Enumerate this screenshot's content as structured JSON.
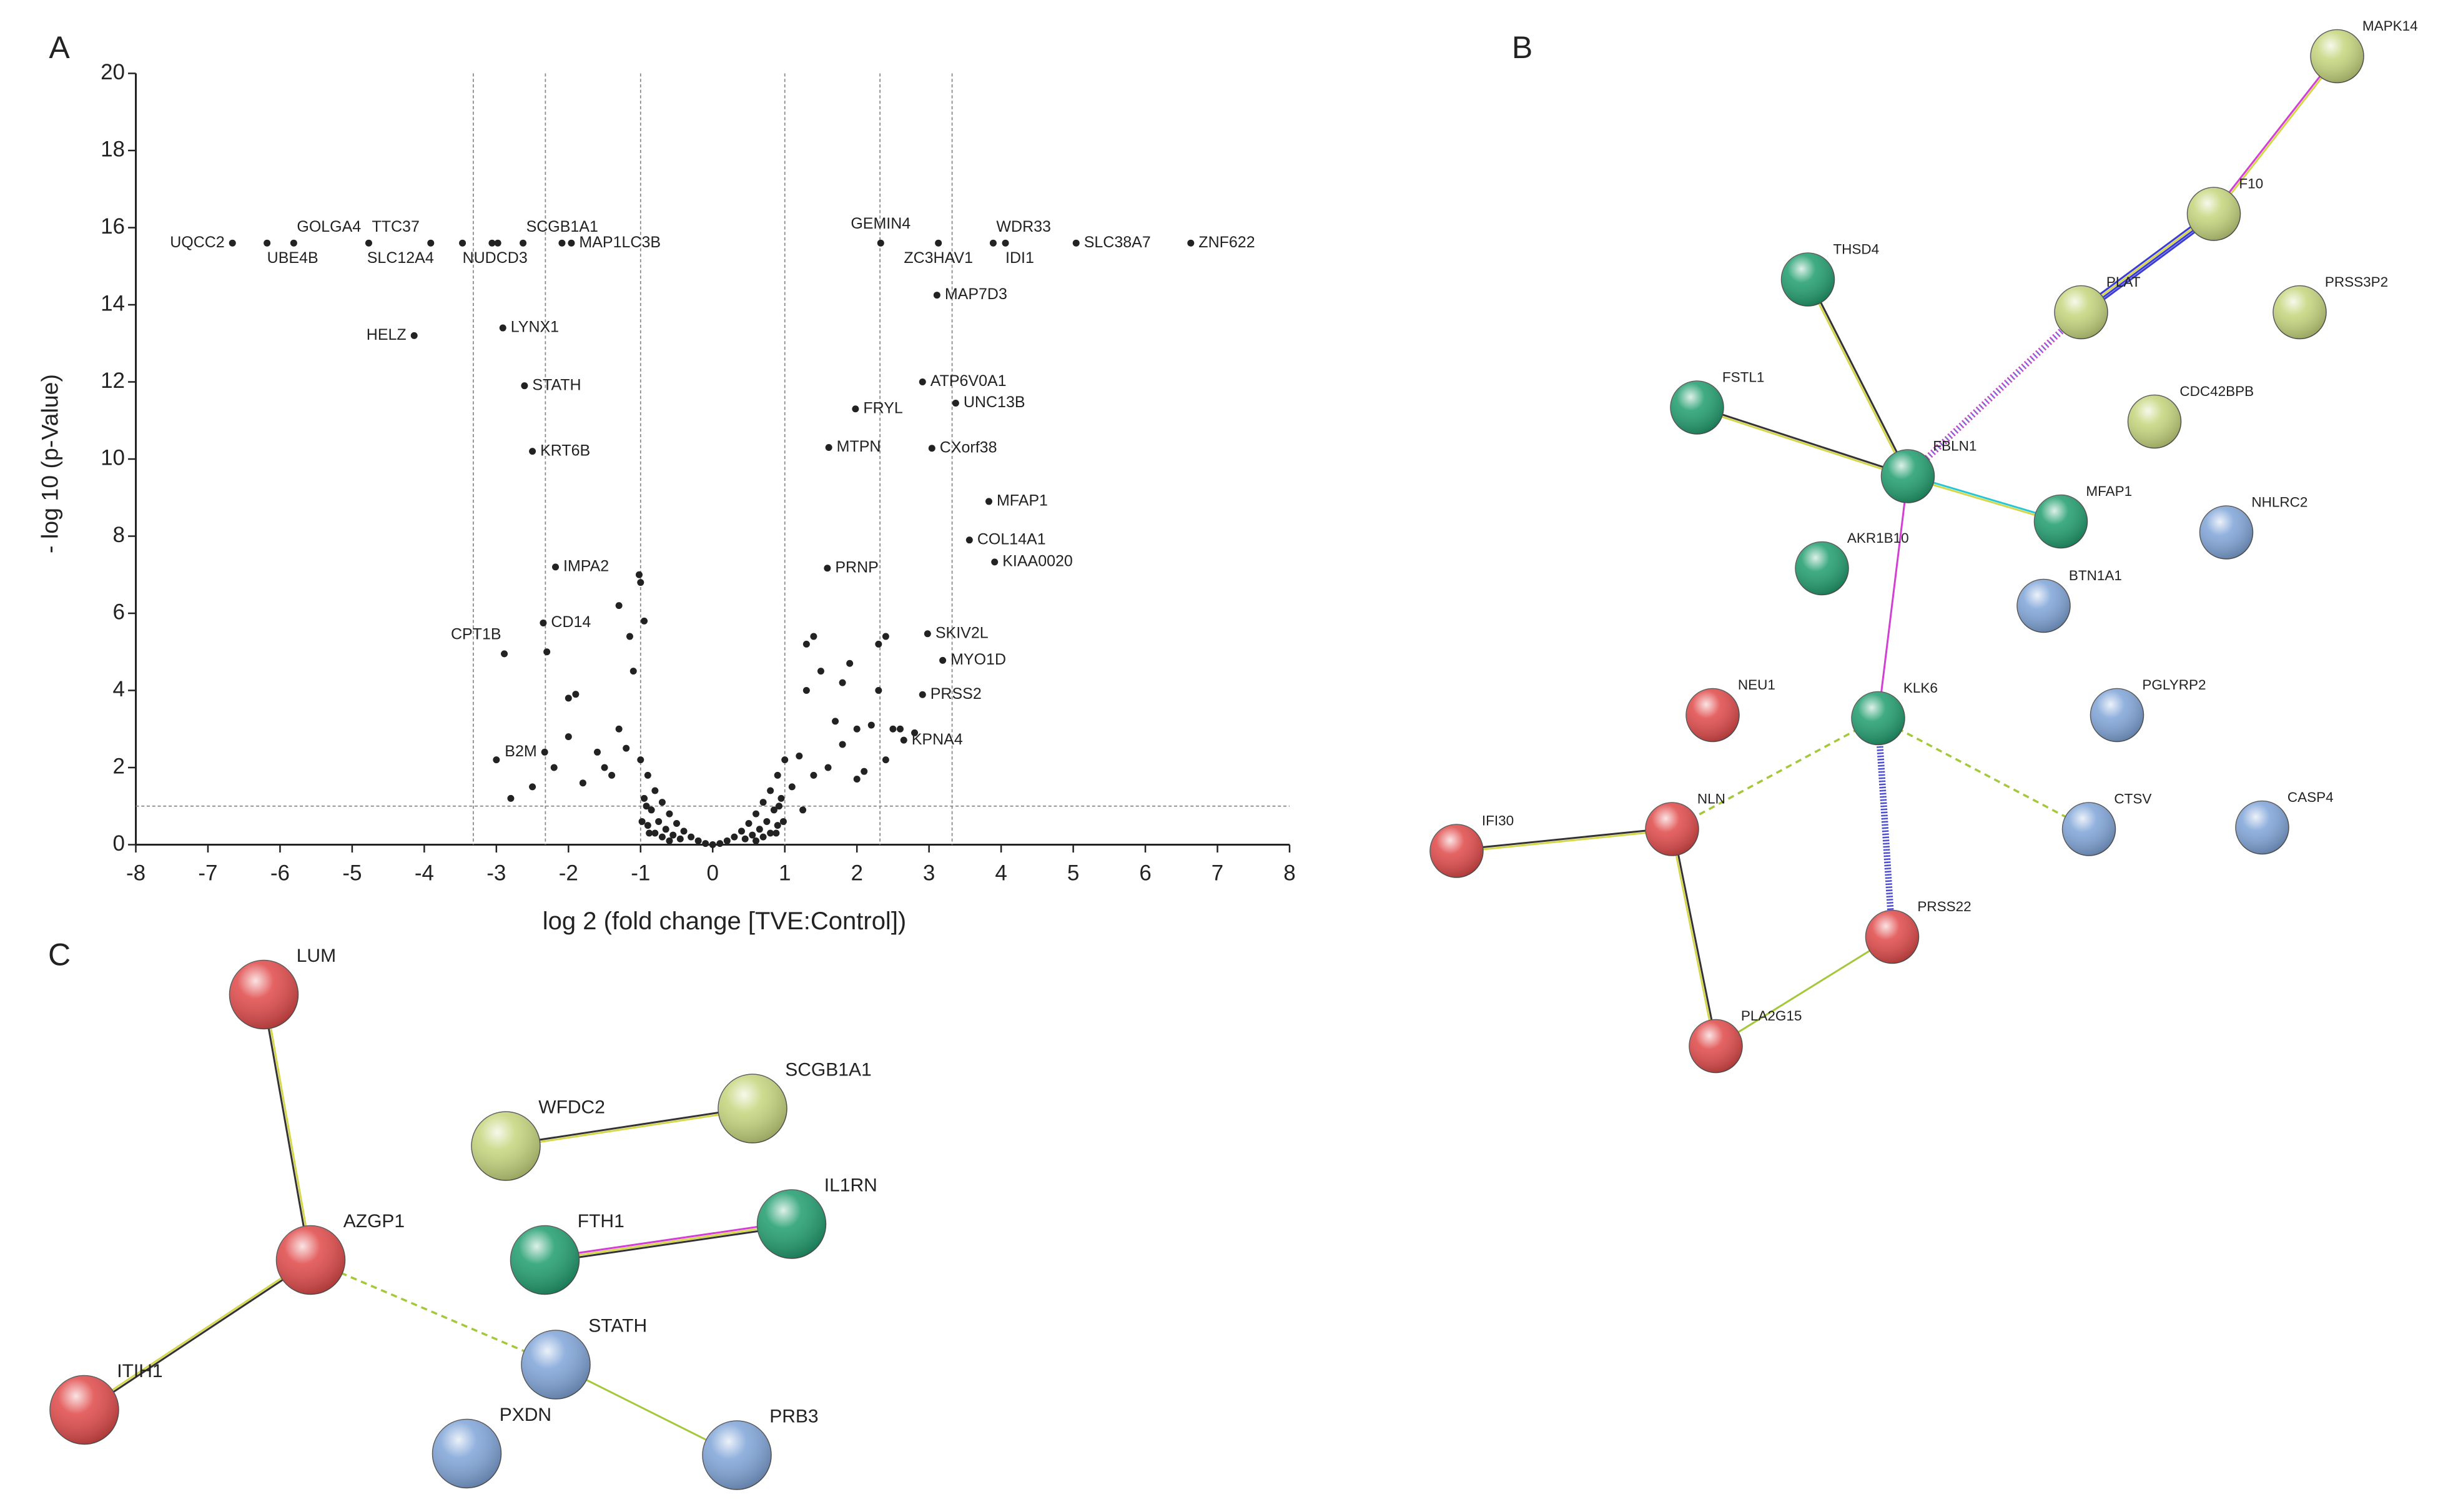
{
  "chart_data": {
    "type": "scatter",
    "panel": "A",
    "x_label": "log 2 (fold change [TVE:Control])",
    "y_label": "- log 10 (p-Value)",
    "xlim": [
      -8,
      8
    ],
    "xticks": [
      -8,
      -7,
      -6,
      -5,
      -4,
      -3,
      -2,
      -1,
      0,
      1,
      2,
      3,
      4,
      5,
      6,
      7,
      8
    ],
    "ylim": [
      0,
      20
    ],
    "yticks": [
      0,
      2,
      4,
      6,
      8,
      10,
      12,
      14,
      16,
      18,
      20
    ],
    "x_thresholds": [
      -3.32,
      -2.32,
      -1,
      1,
      2.32,
      3.32
    ],
    "y_threshold": 1,
    "color": "#222222",
    "labeled_points": {
      "labels": [
        "UQCC2",
        "GOLGA4",
        "UBE4B",
        "TTC37",
        "SLC12A4",
        "NUDCD3",
        "SCGB1A1",
        "MAP1LC3B",
        "HELZ",
        "LYNX1",
        "STATH",
        "KRT6B",
        "IMPA2",
        "CD14",
        "CPT1B",
        "B2M",
        "GEMIN4",
        "ZC3HAV1",
        "WDR33",
        "IDI1",
        "SLC38A7",
        "ZNF622",
        "MAP7D3",
        "ATP6V0A1",
        "FRYL",
        "UNC13B",
        "MTPN",
        "CXorf38",
        "MFAP1",
        "COL14A1",
        "KIAA0020",
        "PRNP",
        "SKIV2L",
        "MYO1D",
        "PRSS2",
        "KPNA4"
      ],
      "x": [
        -6.66,
        -5.81,
        -6.18,
        -4.77,
        -3.91,
        -3.47,
        -2.63,
        -1.96,
        -4.14,
        -2.91,
        -2.61,
        -2.5,
        -2.18,
        -2.35,
        -2.89,
        -2.33,
        2.33,
        3.13,
        3.89,
        4.06,
        5.04,
        6.63,
        3.11,
        2.91,
        1.98,
        3.37,
        1.61,
        3.04,
        3.83,
        3.56,
        3.91,
        1.59,
        2.98,
        3.19,
        2.91,
        2.65
      ],
      "y": [
        15.6,
        15.6,
        15.6,
        15.6,
        15.6,
        15.6,
        15.6,
        15.6,
        13.2,
        13.4,
        11.9,
        10.2,
        7.2,
        5.75,
        4.95,
        2.4,
        15.6,
        15.6,
        15.6,
        15.6,
        15.6,
        15.6,
        14.25,
        12,
        11.3,
        11.45,
        10.3,
        10.28,
        8.9,
        7.9,
        7.33,
        7.17,
        5.47,
        4.78,
        3.89,
        2.71
      ]
    },
    "other_points": {
      "x": [
        -3.06,
        -2.98,
        -2.09,
        -1.2,
        -1.5,
        -1.8,
        -2.0,
        -2.5,
        -2.8,
        -3.0,
        -1.3,
        -1.1,
        -1.0,
        -0.95,
        -1.3,
        -1.15,
        -2.0,
        -1.9,
        -1.4,
        -2.3,
        -1.02,
        -1.6,
        -2.2,
        1.2,
        1.4,
        1.6,
        1.8,
        2.0,
        2.2,
        2.4,
        2.6,
        2.0,
        1.3,
        1.5,
        1.8,
        2.3,
        2.5,
        1.3,
        1.4,
        2.3,
        2.4,
        1.7,
        2.8,
        1.9,
        2.1,
        1.1,
        1.25,
        -1.0,
        -0.9,
        -0.8,
        -0.7,
        -0.6,
        -0.5,
        -0.4,
        -0.3,
        -0.2,
        -0.1,
        0,
        0.1,
        0.2,
        0.3,
        0.4,
        0.5,
        0.6,
        0.7,
        0.8,
        0.9,
        1.0,
        -0.95,
        -0.85,
        -0.75,
        -0.65,
        -0.55,
        -0.45,
        0.45,
        0.55,
        0.65,
        0.75,
        0.85,
        0.95,
        -0.9,
        -0.8,
        -0.7,
        -0.6,
        0.6,
        0.7,
        0.8,
        0.9,
        -0.98,
        0.98,
        -0.92,
        0.92,
        -0.88,
        0.88
      ],
      "y": [
        15.6,
        15.6,
        15.6,
        2.5,
        2.0,
        1.6,
        2.8,
        1.5,
        1.2,
        2.2,
        3.0,
        4.5,
        6.8,
        5.8,
        6.2,
        5.4,
        3.8,
        3.9,
        1.8,
        5.0,
        7.0,
        2.4,
        2.0,
        2.3,
        1.8,
        2.0,
        2.6,
        3.0,
        3.1,
        2.2,
        3.0,
        1.7,
        4.0,
        4.5,
        4.2,
        4.0,
        3.0,
        5.2,
        5.4,
        5.2,
        5.4,
        3.2,
        2.9,
        4.7,
        1.9,
        1.5,
        0.9,
        2.2,
        1.8,
        1.4,
        1.1,
        0.8,
        0.55,
        0.35,
        0.2,
        0.1,
        0.03,
        0,
        0.03,
        0.1,
        0.2,
        0.35,
        0.55,
        0.8,
        1.1,
        1.4,
        1.8,
        2.2,
        1.2,
        0.9,
        0.6,
        0.4,
        0.25,
        0.15,
        0.15,
        0.25,
        0.4,
        0.6,
        0.9,
        1.2,
        0.5,
        0.3,
        0.2,
        0.1,
        0.1,
        0.2,
        0.3,
        0.5,
        0.6,
        0.6,
        1.0,
        1.0,
        0.3,
        0.3
      ]
    }
  },
  "networks": [
    {
      "panel": "B",
      "nodes": [
        {
          "label": "MAPK14",
          "color": "#c5d57c"
        },
        {
          "label": "F10",
          "color": "#c5d57c"
        },
        {
          "label": "PLAT",
          "color": "#c5d57c"
        },
        {
          "label": "PRSS3P2",
          "color": "#c5d57c"
        },
        {
          "label": "CDC42BPB",
          "color": "#c5d57c"
        },
        {
          "label": "THSD4",
          "color": "#1f9d6d"
        },
        {
          "label": "FSTL1",
          "color": "#1f9d6d"
        },
        {
          "label": "FBLN1",
          "color": "#1f9d6d"
        },
        {
          "label": "MFAP1",
          "color": "#1f9d6d"
        },
        {
          "label": "AKR1B10",
          "color": "#1f9d6d"
        },
        {
          "label": "NHLRC2",
          "color": "#7fa4d8"
        },
        {
          "label": "BTN1A1",
          "color": "#7fa4d8"
        },
        {
          "label": "KLK6",
          "color": "#1f9d6d"
        },
        {
          "label": "NEU1",
          "color": "#e04848"
        },
        {
          "label": "PGLYRP2",
          "color": "#7fa4d8"
        },
        {
          "label": "IFI30",
          "color": "#e04848"
        },
        {
          "label": "NLN",
          "color": "#e04848"
        },
        {
          "label": "CTSV",
          "color": "#7fa4d8"
        },
        {
          "label": "CASP4",
          "color": "#7fa4d8"
        },
        {
          "label": "PRSS22",
          "color": "#e04848"
        },
        {
          "label": "PLA2G15",
          "color": "#e04848"
        }
      ]
    },
    {
      "panel": "C",
      "nodes": [
        {
          "label": "LUM",
          "color": "#e04848"
        },
        {
          "label": "AZGP1",
          "color": "#e04848"
        },
        {
          "label": "ITIH1",
          "color": "#e04848"
        },
        {
          "label": "WFDC2",
          "color": "#c5d57c"
        },
        {
          "label": "SCGB1A1",
          "color": "#c5d57c"
        },
        {
          "label": "FTH1",
          "color": "#1f9d6d"
        },
        {
          "label": "IL1RN",
          "color": "#1f9d6d"
        },
        {
          "label": "STATH",
          "color": "#7fa4d8"
        },
        {
          "label": "PXDN",
          "color": "#7fa4d8"
        },
        {
          "label": "PRB3",
          "color": "#7fa4d8"
        }
      ]
    }
  ]
}
